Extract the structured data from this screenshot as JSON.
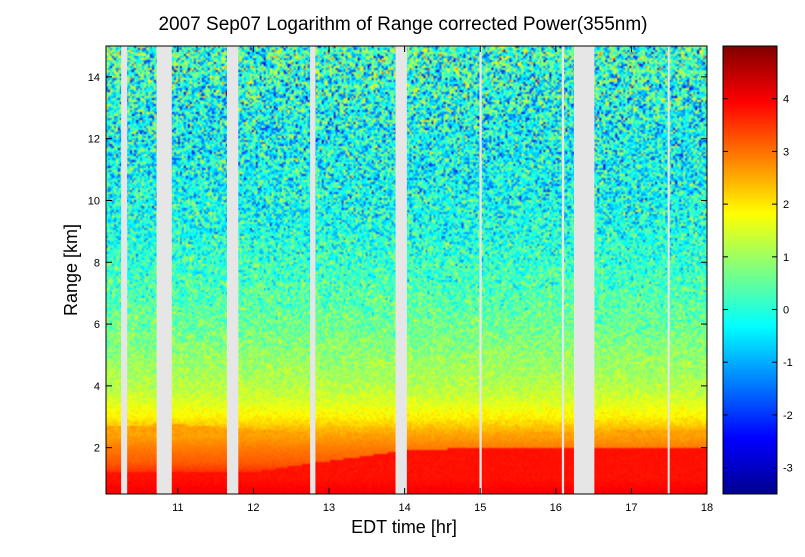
{
  "chart_data": {
    "type": "heatmap",
    "title": "2007 Sep07  Logarithm of Range corrected Power(355nm)",
    "xlabel": "EDT time [hr]",
    "ylabel": "Range [km]",
    "xlim": [
      10.05,
      18.0
    ],
    "ylim": [
      0.5,
      15.0
    ],
    "x_ticks": [
      11,
      12,
      13,
      14,
      15,
      16,
      17,
      18
    ],
    "y_ticks": [
      2,
      4,
      6,
      8,
      10,
      12,
      14
    ],
    "colorbar": {
      "colormap": "jet",
      "clim": [
        -3.5,
        5.0
      ],
      "ticks": [
        -3,
        -2,
        -1,
        0,
        1,
        2,
        3,
        4
      ]
    },
    "data_gaps_hr": [
      [
        10.25,
        10.33
      ],
      [
        10.72,
        10.92
      ],
      [
        11.65,
        11.8
      ],
      [
        12.75,
        12.82
      ],
      [
        13.88,
        14.03
      ],
      [
        14.99,
        15.02
      ],
      [
        16.08,
        16.11
      ],
      [
        16.24,
        16.51
      ],
      [
        17.48,
        17.5
      ]
    ],
    "aerosol_layer_top_km": [
      [
        10.05,
        2.7
      ],
      [
        11.0,
        2.75
      ],
      [
        12.0,
        2.6
      ],
      [
        13.0,
        2.45
      ],
      [
        14.0,
        2.4
      ],
      [
        15.0,
        2.45
      ],
      [
        16.0,
        2.5
      ],
      [
        17.0,
        2.55
      ],
      [
        18.0,
        2.6
      ]
    ],
    "high_power_layer_top_km": [
      [
        10.05,
        1.2
      ],
      [
        12.0,
        1.2
      ],
      [
        12.8,
        1.5
      ],
      [
        14.0,
        1.9
      ],
      [
        15.0,
        2.0
      ],
      [
        16.0,
        2.0
      ],
      [
        18.0,
        2.0
      ]
    ],
    "log_power_profile": [
      [
        0.5,
        4.0
      ],
      [
        1.0,
        3.8
      ],
      [
        1.5,
        3.2
      ],
      [
        2.0,
        2.9
      ],
      [
        2.5,
        2.5
      ],
      [
        3.0,
        1.9
      ],
      [
        3.5,
        1.5
      ],
      [
        4.0,
        1.2
      ],
      [
        5.0,
        0.9
      ],
      [
        6.0,
        0.6
      ],
      [
        7.0,
        0.35
      ],
      [
        8.0,
        0.1
      ],
      [
        9.0,
        -0.1
      ],
      [
        10.0,
        -0.2
      ],
      [
        11.0,
        -0.25
      ],
      [
        12.0,
        -0.25
      ],
      [
        13.0,
        -0.15
      ],
      [
        14.0,
        0.0
      ],
      [
        15.0,
        0.1
      ]
    ]
  }
}
